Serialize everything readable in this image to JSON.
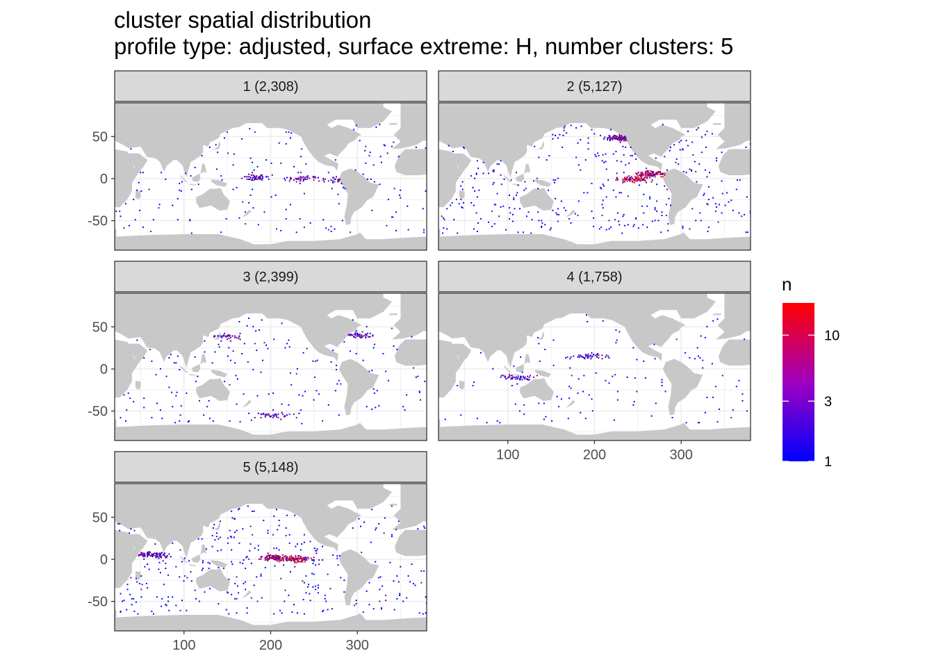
{
  "title": "cluster spatial distribution",
  "subtitle": "profile type: adjusted, surface extreme: H, number clusters: 5",
  "legend": {
    "title": "n",
    "ticks": [
      "1",
      "3",
      "10"
    ],
    "low_color": "#0000ff",
    "high_color": "#ff0000"
  },
  "chart_data": {
    "type": "heatmap",
    "facet_variable": "cluster",
    "x_axis": {
      "label": "",
      "ticks": [
        100,
        200,
        300
      ],
      "range": [
        20,
        380
      ]
    },
    "y_axis": {
      "label": "",
      "ticks": [
        50,
        0,
        -50
      ],
      "range": [
        -85,
        90
      ]
    },
    "fill_variable": "n",
    "fill_scale": "log10",
    "fill_range": [
      1,
      18
    ],
    "colors": {
      "low": "#0000ff",
      "high": "#ff0000",
      "land": "#c8c8c8",
      "panel_background": "#ffffff",
      "strip_background": "#d9d9d9"
    },
    "facets": [
      {
        "label": "1 (2,308)",
        "cluster": 1,
        "profiles": 2308,
        "hotspots": [
          {
            "lon": 185,
            "lat": 1,
            "n": 4
          },
          {
            "lon": 235,
            "lat": 0,
            "n": 4
          },
          {
            "lon": 280,
            "lat": -2,
            "n": 4
          }
        ]
      },
      {
        "label": "2 (5,127)",
        "cluster": 2,
        "profiles": 5127,
        "hotspots": [
          {
            "lon": 245,
            "lat": -1,
            "n": 15
          },
          {
            "lon": 265,
            "lat": 5,
            "n": 12
          },
          {
            "lon": 230,
            "lat": 48,
            "n": 6
          }
        ]
      },
      {
        "label": "3 (2,399)",
        "cluster": 3,
        "profiles": 2399,
        "hotspots": [
          {
            "lon": 150,
            "lat": 38,
            "n": 5
          },
          {
            "lon": 300,
            "lat": 40,
            "n": 4
          },
          {
            "lon": 200,
            "lat": -55,
            "n": 3
          }
        ]
      },
      {
        "label": "4 (1,758)",
        "cluster": 4,
        "profiles": 1758,
        "hotspots": [
          {
            "lon": 190,
            "lat": 15,
            "n": 3
          },
          {
            "lon": 110,
            "lat": -10,
            "n": 3
          }
        ]
      },
      {
        "label": "5 (5,148)",
        "cluster": 5,
        "profiles": 5148,
        "hotspots": [
          {
            "lon": 230,
            "lat": 0,
            "n": 16
          },
          {
            "lon": 205,
            "lat": 2,
            "n": 10
          },
          {
            "lon": 60,
            "lat": 5,
            "n": 4
          }
        ]
      }
    ]
  }
}
